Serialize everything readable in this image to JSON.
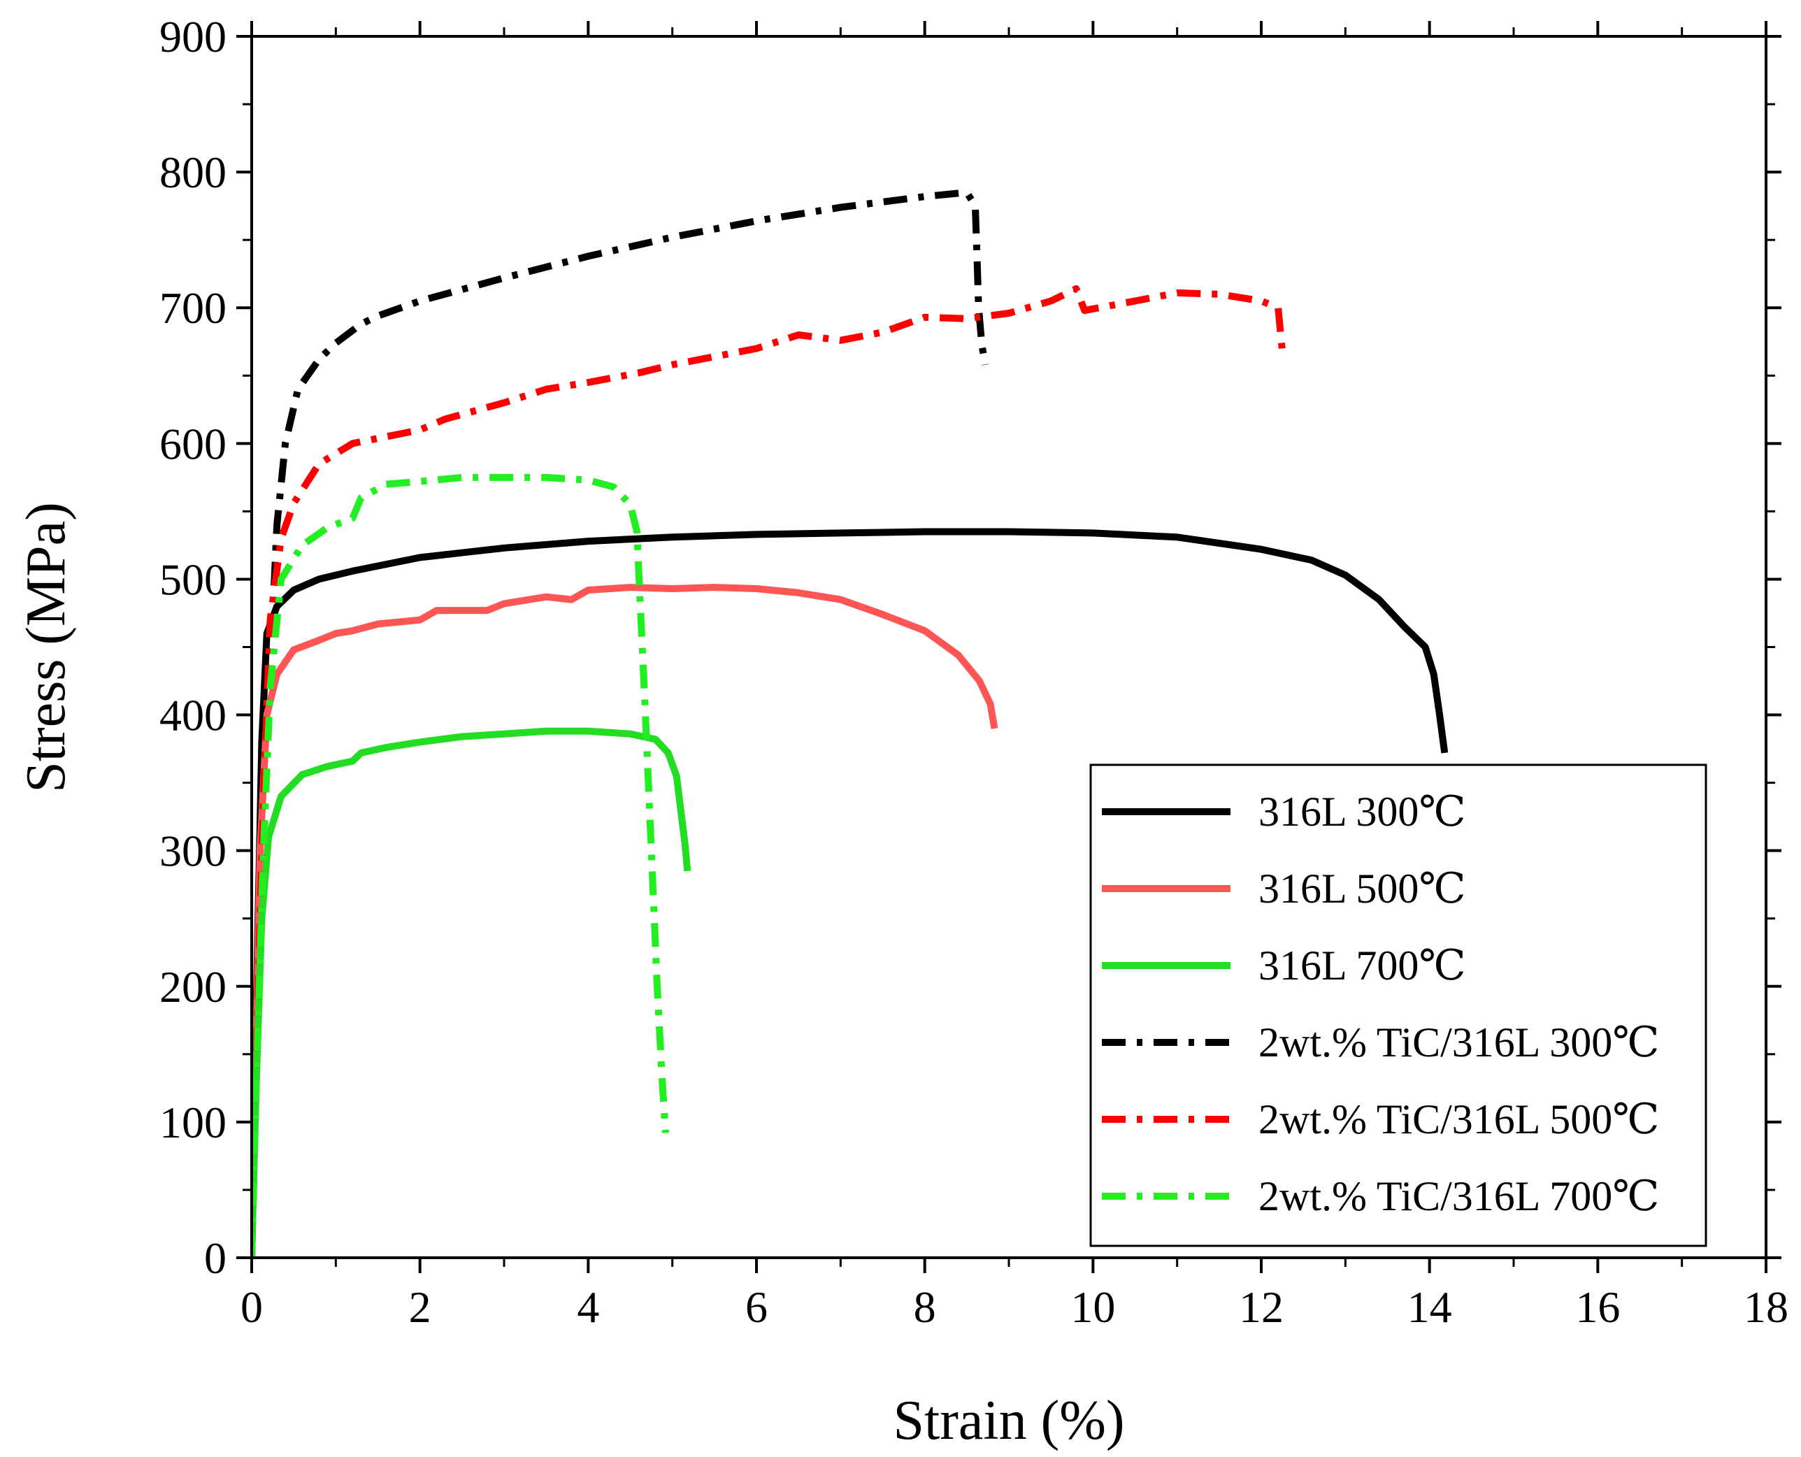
{
  "chart_data": {
    "type": "line",
    "title": "",
    "xlabel": "Strain (%)",
    "ylabel": "Stress (MPa)",
    "xlim": [
      0,
      18
    ],
    "ylim": [
      0,
      900
    ],
    "xticks": [
      "0",
      "2",
      "4",
      "6",
      "8",
      "10",
      "12",
      "14",
      "16",
      "18"
    ],
    "yticks": [
      "0",
      "100",
      "200",
      "300",
      "400",
      "500",
      "600",
      "700",
      "800",
      "900"
    ],
    "legend_position": "bottom-right",
    "series": [
      {
        "name": "316L 300℃",
        "color": "#000000",
        "style": "solid",
        "points": [
          [
            0,
            0
          ],
          [
            0.06,
            200
          ],
          [
            0.12,
            380
          ],
          [
            0.18,
            460
          ],
          [
            0.3,
            480
          ],
          [
            0.5,
            492
          ],
          [
            0.8,
            500
          ],
          [
            1.2,
            506
          ],
          [
            2,
            516
          ],
          [
            3,
            523
          ],
          [
            4,
            528
          ],
          [
            5,
            531
          ],
          [
            6,
            533
          ],
          [
            7,
            534
          ],
          [
            8,
            535
          ],
          [
            9,
            535
          ],
          [
            10,
            534
          ],
          [
            11,
            531
          ],
          [
            12,
            522
          ],
          [
            12.6,
            514
          ],
          [
            13,
            503
          ],
          [
            13.4,
            485
          ],
          [
            13.7,
            465
          ],
          [
            13.95,
            450
          ],
          [
            14.05,
            430
          ],
          [
            14.12,
            400
          ],
          [
            14.18,
            372
          ]
        ]
      },
      {
        "name": "316L 500℃",
        "color": "#ff5555",
        "style": "solid",
        "points": [
          [
            0,
            0
          ],
          [
            0.05,
            150
          ],
          [
            0.1,
            300
          ],
          [
            0.18,
            400
          ],
          [
            0.3,
            430
          ],
          [
            0.5,
            448
          ],
          [
            0.8,
            455
          ],
          [
            1.0,
            460
          ],
          [
            1.2,
            462
          ],
          [
            1.5,
            467
          ],
          [
            2,
            470
          ],
          [
            2.2,
            477
          ],
          [
            2.8,
            477
          ],
          [
            3,
            482
          ],
          [
            3.5,
            487
          ],
          [
            3.8,
            485
          ],
          [
            4,
            492
          ],
          [
            4.5,
            494
          ],
          [
            5,
            493
          ],
          [
            5.5,
            494
          ],
          [
            6,
            493
          ],
          [
            6.5,
            490
          ],
          [
            7,
            485
          ],
          [
            7.5,
            474
          ],
          [
            8,
            462
          ],
          [
            8.4,
            444
          ],
          [
            8.65,
            425
          ],
          [
            8.78,
            408
          ],
          [
            8.83,
            390
          ]
        ]
      },
      {
        "name": "316L 700℃",
        "color": "#22dd22",
        "style": "solid",
        "points": [
          [
            0,
            0
          ],
          [
            0.05,
            120
          ],
          [
            0.12,
            250
          ],
          [
            0.2,
            310
          ],
          [
            0.35,
            340
          ],
          [
            0.6,
            356
          ],
          [
            0.9,
            362
          ],
          [
            1.2,
            366
          ],
          [
            1.3,
            372
          ],
          [
            1.6,
            376
          ],
          [
            2,
            380
          ],
          [
            2.5,
            384
          ],
          [
            3,
            386
          ],
          [
            3.5,
            388
          ],
          [
            4,
            388
          ],
          [
            4.5,
            386
          ],
          [
            4.8,
            382
          ],
          [
            4.95,
            372
          ],
          [
            5.05,
            355
          ],
          [
            5.1,
            330
          ],
          [
            5.15,
            305
          ],
          [
            5.18,
            285
          ]
        ]
      },
      {
        "name": "2wt.% TiC/316L 300℃",
        "color": "#000000",
        "style": "dashdot",
        "points": [
          [
            0,
            0
          ],
          [
            0.08,
            200
          ],
          [
            0.16,
            350
          ],
          [
            0.24,
            460
          ],
          [
            0.3,
            540
          ],
          [
            0.4,
            600
          ],
          [
            0.55,
            640
          ],
          [
            0.8,
            662
          ],
          [
            1,
            674
          ],
          [
            1.3,
            688
          ],
          [
            1.5,
            694
          ],
          [
            2,
            705
          ],
          [
            3,
            722
          ],
          [
            4,
            738
          ],
          [
            5,
            752
          ],
          [
            6,
            764
          ],
          [
            7,
            774
          ],
          [
            8,
            782
          ],
          [
            8.5,
            785
          ],
          [
            8.6,
            775
          ],
          [
            8.62,
            740
          ],
          [
            8.64,
            700
          ],
          [
            8.68,
            672
          ],
          [
            8.72,
            658
          ]
        ]
      },
      {
        "name": "2wt.% TiC/316L 500℃",
        "color": "#ff0000",
        "style": "dashdot",
        "points": [
          [
            0,
            0
          ],
          [
            0.07,
            180
          ],
          [
            0.14,
            340
          ],
          [
            0.22,
            470
          ],
          [
            0.35,
            530
          ],
          [
            0.5,
            556
          ],
          [
            0.8,
            585
          ],
          [
            1.2,
            600
          ],
          [
            1.6,
            605
          ],
          [
            2,
            610
          ],
          [
            2.3,
            618
          ],
          [
            3,
            630
          ],
          [
            3.5,
            640
          ],
          [
            4,
            645
          ],
          [
            4.6,
            652
          ],
          [
            5,
            658
          ],
          [
            6,
            670
          ],
          [
            6.5,
            680
          ],
          [
            7,
            676
          ],
          [
            7.5,
            682
          ],
          [
            8,
            693
          ],
          [
            8.5,
            692
          ],
          [
            9,
            696
          ],
          [
            9.5,
            705
          ],
          [
            9.8,
            714
          ],
          [
            9.9,
            698
          ],
          [
            10.5,
            705
          ],
          [
            11,
            711
          ],
          [
            11.5,
            710
          ],
          [
            12,
            705
          ],
          [
            12.2,
            700
          ],
          [
            12.25,
            668
          ]
        ]
      },
      {
        "name": "2wt.% TiC/316L 700℃",
        "color": "#22ee22",
        "style": "dashdot",
        "points": [
          [
            0,
            0
          ],
          [
            0.06,
            140
          ],
          [
            0.14,
            300
          ],
          [
            0.22,
            420
          ],
          [
            0.35,
            500
          ],
          [
            0.6,
            525
          ],
          [
            0.9,
            538
          ],
          [
            1.2,
            545
          ],
          [
            1.3,
            560
          ],
          [
            1.6,
            570
          ],
          [
            2,
            572
          ],
          [
            2.5,
            575
          ],
          [
            3,
            575
          ],
          [
            3.5,
            575
          ],
          [
            4,
            573
          ],
          [
            4.3,
            568
          ],
          [
            4.5,
            555
          ],
          [
            4.58,
            535
          ],
          [
            4.62,
            480
          ],
          [
            4.68,
            400
          ],
          [
            4.75,
            300
          ],
          [
            4.82,
            200
          ],
          [
            4.88,
            130
          ],
          [
            4.92,
            92
          ]
        ]
      }
    ]
  }
}
